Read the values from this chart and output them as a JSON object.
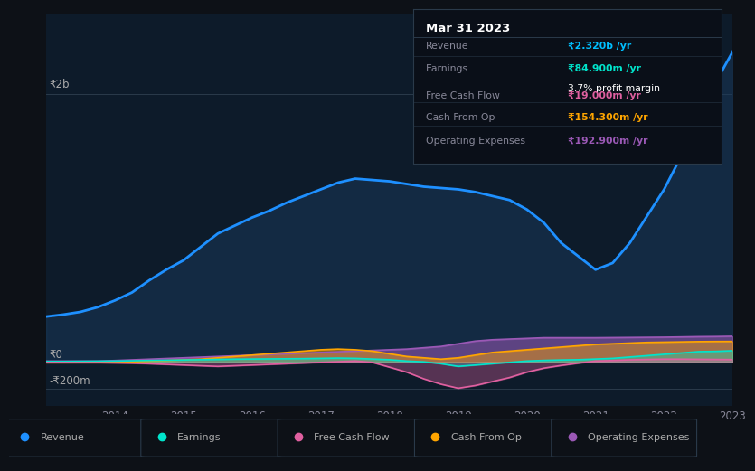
{
  "bg_color": "#0d1117",
  "plot_bg_color": "#0d1b2a",
  "title": "Mar 31 2023",
  "info_box": {
    "Revenue": {
      "value": "₹2.320b /yr",
      "color": "#00bfff"
    },
    "Earnings": {
      "value": "₹84.900m /yr",
      "color": "#00e5cc"
    },
    "profit_margin": "3.7% profit margin",
    "Free Cash Flow": {
      "value": "₹19.000m /yr",
      "color": "#e060a0"
    },
    "Cash From Op": {
      "value": "₹154.300m /yr",
      "color": "#ffa500"
    },
    "Operating Expenses": {
      "value": "₹192.900m /yr",
      "color": "#9b59b6"
    }
  },
  "years": [
    2013.0,
    2013.25,
    2013.5,
    2013.75,
    2014.0,
    2014.25,
    2014.5,
    2014.75,
    2015.0,
    2015.25,
    2015.5,
    2015.75,
    2016.0,
    2016.25,
    2016.5,
    2016.75,
    2017.0,
    2017.25,
    2017.5,
    2017.75,
    2018.0,
    2018.25,
    2018.5,
    2018.75,
    2019.0,
    2019.25,
    2019.5,
    2019.75,
    2020.0,
    2020.25,
    2020.5,
    2020.75,
    2021.0,
    2021.25,
    2021.5,
    2021.75,
    2022.0,
    2022.25,
    2022.5,
    2022.75,
    2023.0
  ],
  "revenue": [
    340,
    355,
    375,
    410,
    460,
    520,
    610,
    690,
    760,
    860,
    960,
    1020,
    1080,
    1130,
    1190,
    1240,
    1290,
    1340,
    1370,
    1360,
    1350,
    1330,
    1310,
    1300,
    1290,
    1270,
    1240,
    1210,
    1140,
    1040,
    890,
    790,
    690,
    740,
    890,
    1090,
    1290,
    1540,
    1790,
    2090,
    2320
  ],
  "earnings": [
    5,
    5,
    6,
    7,
    8,
    10,
    12,
    14,
    16,
    18,
    20,
    22,
    23,
    24,
    25,
    26,
    28,
    30,
    28,
    23,
    18,
    8,
    2,
    -12,
    -32,
    -22,
    -12,
    -2,
    8,
    13,
    16,
    18,
    23,
    28,
    38,
    48,
    58,
    68,
    78,
    80,
    84.9
  ],
  "free_cash_flow": [
    -3,
    -3,
    -4,
    -4,
    -6,
    -8,
    -12,
    -17,
    -22,
    -27,
    -32,
    -27,
    -22,
    -17,
    -12,
    -7,
    -2,
    3,
    8,
    -2,
    -38,
    -75,
    -125,
    -165,
    -195,
    -175,
    -145,
    -115,
    -75,
    -45,
    -25,
    -8,
    8,
    12,
    17,
    20,
    22,
    22,
    21,
    20,
    19
  ],
  "cash_from_op": [
    -4,
    -4,
    -3,
    -3,
    -2,
    2,
    7,
    12,
    17,
    22,
    32,
    42,
    52,
    62,
    72,
    82,
    92,
    97,
    92,
    82,
    62,
    42,
    32,
    22,
    32,
    52,
    72,
    82,
    92,
    102,
    112,
    122,
    132,
    137,
    142,
    147,
    149,
    151,
    153,
    154,
    154.3
  ],
  "operating_expenses": [
    8,
    8,
    8,
    8,
    12,
    17,
    22,
    27,
    32,
    37,
    42,
    47,
    52,
    57,
    62,
    67,
    72,
    77,
    82,
    87,
    92,
    97,
    107,
    117,
    137,
    157,
    167,
    172,
    177,
    182,
    182,
    182,
    182,
    183,
    184,
    185,
    186,
    188,
    190,
    191,
    192.9
  ],
  "revenue_color": "#1e90ff",
  "earnings_color": "#00e5cc",
  "free_cash_flow_color": "#e060a0",
  "cash_from_op_color": "#ffa500",
  "operating_expenses_color": "#9b59b6",
  "revenue_fill_alpha": 0.5,
  "ylim_top": 2600,
  "ylim_bottom": -330,
  "x_ticks": [
    2014,
    2015,
    2016,
    2017,
    2018,
    2019,
    2020,
    2021,
    2022,
    2023
  ],
  "y_label_2b": "₹2b",
  "y_label_0": "₹0",
  "y_label_neg200": "-₹200m",
  "legend_items": [
    "Revenue",
    "Earnings",
    "Free Cash Flow",
    "Cash From Op",
    "Operating Expenses"
  ],
  "legend_colors": [
    "#1e90ff",
    "#00e5cc",
    "#e060a0",
    "#ffa500",
    "#9b59b6"
  ]
}
